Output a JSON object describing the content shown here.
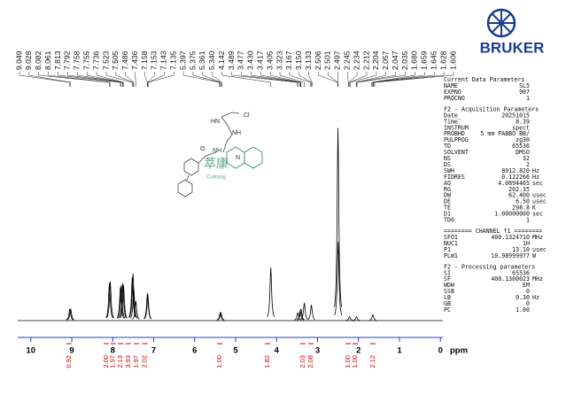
{
  "chart_data": {
    "type": "nmr",
    "xlabel": "ppm",
    "xlim": [
      10.32,
      -0.06
    ],
    "ylim": [
      0,
      100
    ],
    "xticks": [
      10,
      9,
      8,
      7,
      6,
      5,
      4,
      3,
      2,
      1,
      0
    ],
    "color": "#000000",
    "axis_color": "#1f3fbf",
    "integral_color": "#cc0000",
    "peak_labels": [
      9.049,
      9.028,
      8.082,
      8.061,
      7.813,
      7.792,
      7.758,
      7.755,
      7.736,
      7.523,
      7.505,
      7.486,
      7.436,
      7.158,
      7.153,
      7.143,
      7.135,
      5.397,
      5.375,
      5.361,
      {
        "value": 5.34,
        "label": "5.340"
      },
      4.142,
      3.489,
      3.477,
      {
        "value": 3.43,
        "label": "3.430"
      },
      3.417,
      3.405,
      3.323,
      3.167,
      {
        "value": 3.15,
        "label": "3.150"
      },
      3.133,
      2.506,
      2.501,
      2.497,
      2.245,
      2.234,
      2.212,
      2.204,
      2.057,
      2.047,
      2.035,
      {
        "value": 1.68,
        "label": "1.680"
      },
      1.659,
      1.645,
      1.628,
      1.606
    ],
    "peaks": {
      "x": [
        9.049,
        9.028,
        8.082,
        8.061,
        7.813,
        7.792,
        7.755,
        7.736,
        7.523,
        7.505,
        7.486,
        7.436,
        7.153,
        7.143,
        5.375,
        5.361,
        4.142,
        3.483,
        3.423,
        3.405,
        3.323,
        3.15,
        2.501,
        2.497,
        2.22,
        2.05,
        1.65
      ],
      "values": [
        6,
        6,
        19,
        20,
        17,
        18,
        19,
        18,
        22,
        24,
        16,
        10,
        14,
        13,
        4,
        4,
        27,
        4,
        5,
        6,
        9,
        8,
        98,
        40,
        2,
        2,
        3
      ]
    },
    "integrals": {
      "x": [
        9.07,
        8.16,
        7.99,
        7.81,
        7.62,
        7.42,
        7.22,
        5.39,
        4.22,
        3.36,
        3.16,
        2.25,
        2.08,
        1.65
      ],
      "values": [
        0.92,
        2,
        1.97,
        2.13,
        3.93,
        1.97,
        2.02,
        1,
        1.82,
        2.03,
        2.08,
        1,
        1,
        2.12
      ],
      "value_labels": [
        "0.92",
        "2.00",
        "1.97",
        "2.13",
        "3.93",
        "1.97",
        "2.02",
        "1.00",
        "1.82",
        "2.03",
        "2.08",
        "1.00",
        "1.00",
        "2.12"
      ]
    }
  },
  "logo": "BRUKER",
  "structure": {
    "atoms": [
      "Cl",
      "HN",
      "NH",
      "N",
      "NH",
      "O"
    ],
    "watermark": "萃康",
    "watermark_sub": "Cuikang"
  },
  "panel": [
    {
      "title": "Current Data Parameters",
      "rows": [
        [
          "NAME",
          "SL5"
        ],
        [
          "EXPNO",
          "907"
        ],
        [
          "PROCNO",
          "1"
        ]
      ]
    },
    {
      "title": "F2 - Acquisition Parameters",
      "rows": [
        [
          "Date_",
          "20251015"
        ],
        [
          "Time",
          "8.39"
        ],
        [
          "INSTRUM",
          "spect"
        ],
        [
          "PROBHD",
          "5 mm PABBO BB/"
        ],
        [
          "PULPROG",
          "zg30"
        ],
        [
          "TD",
          "65536"
        ],
        [
          "SOLVENT",
          "DMSO"
        ],
        [
          "NS",
          "32"
        ],
        [
          "DS",
          "2"
        ],
        [
          "SWH",
          "8012.820",
          "Hz"
        ],
        [
          "FIDRES",
          "0.122266",
          "Hz"
        ],
        [
          "AQ",
          "4.0894465",
          "sec"
        ],
        [
          "RG",
          "202.35"
        ],
        [
          "DW",
          "62.400",
          "usec"
        ],
        [
          "DE",
          "6.50",
          "usec"
        ],
        [
          "TE",
          "298.8",
          "K"
        ],
        [
          "D1",
          "1.00000000",
          "sec"
        ],
        [
          "TD0",
          "1"
        ]
      ]
    },
    {
      "title": "======== CHANNEL f1 ========",
      "rows": [
        [
          "SFO1",
          "400.1324710",
          "MHz"
        ],
        [
          "NUC1",
          "1H"
        ],
        [
          "P1",
          "13.10",
          "usec"
        ],
        [
          "PLW1",
          "10.98999977",
          "W"
        ]
      ]
    },
    {
      "title": "F2 - Processing parameters",
      "rows": [
        [
          "SI",
          "65536"
        ],
        [
          "SF",
          "400.1300023",
          "MHz"
        ],
        [
          "WDW",
          "EM"
        ],
        [
          "SSB",
          "0"
        ],
        [
          "LB",
          "0.30",
          "Hz"
        ],
        [
          "GB",
          "0"
        ],
        [
          "PC",
          "1.00"
        ]
      ]
    }
  ]
}
